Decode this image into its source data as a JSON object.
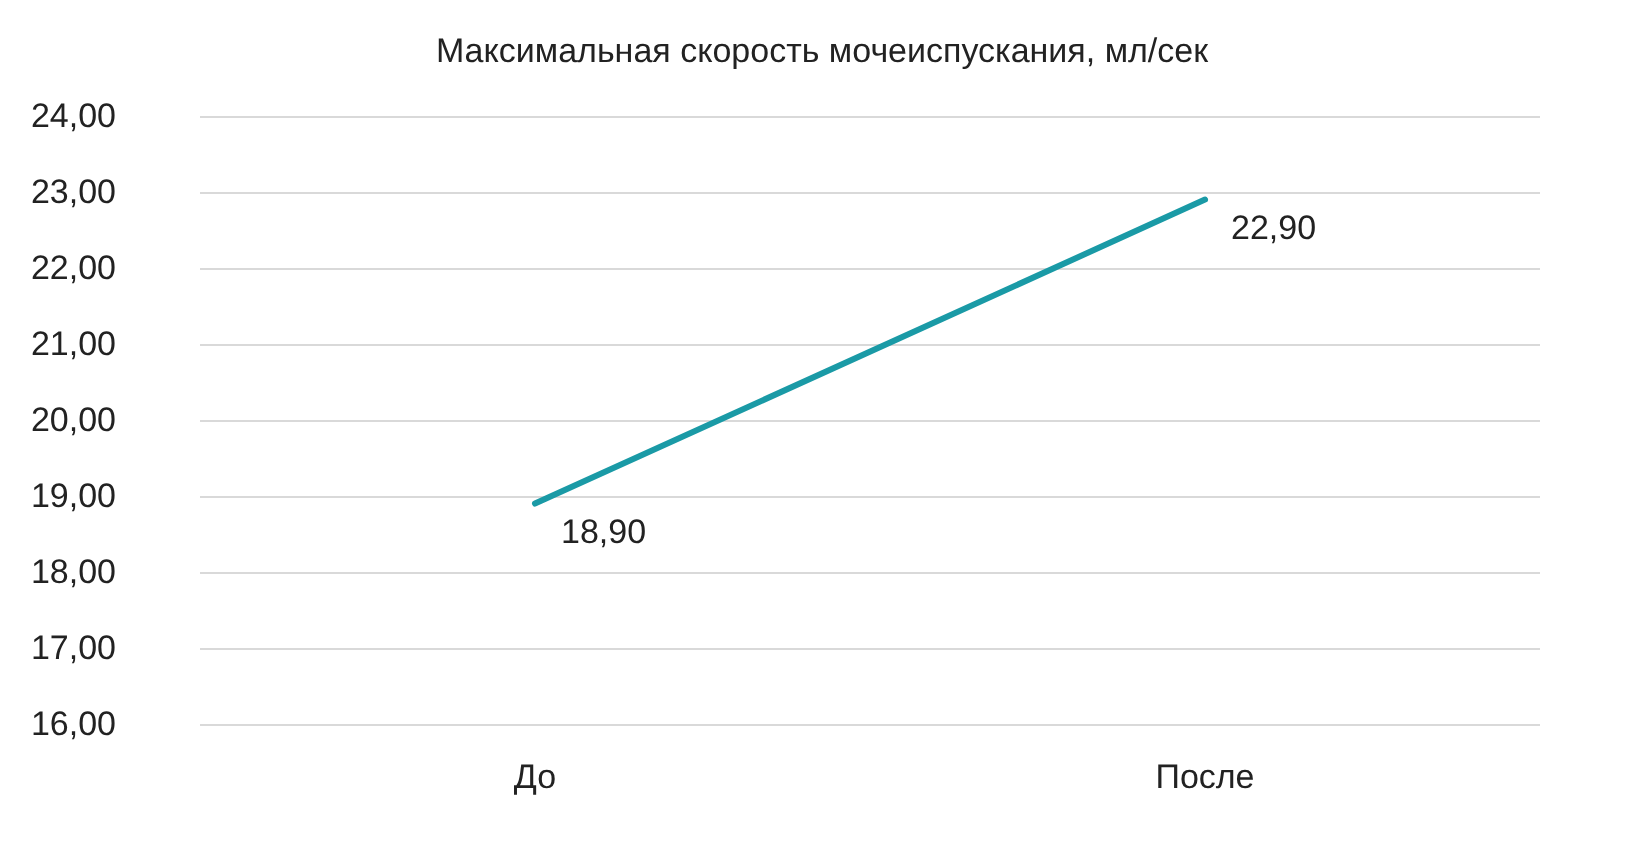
{
  "chart_data": {
    "type": "line",
    "title": "Максимальная скорость мочеиспускания, мл/сек",
    "categories": [
      "До",
      "После"
    ],
    "series": [
      {
        "color": "#1a9aa6",
        "values": [
          18.9,
          22.9
        ],
        "value_labels": [
          "18,90",
          "22,90"
        ]
      }
    ],
    "ylim": [
      16,
      24
    ],
    "yticks": [
      {
        "value": 16,
        "label": "16,00"
      },
      {
        "value": 17,
        "label": "17,00"
      },
      {
        "value": 18,
        "label": "18,00"
      },
      {
        "value": 19,
        "label": "19,00"
      },
      {
        "value": 20,
        "label": "20,00"
      },
      {
        "value": 21,
        "label": "21,00"
      },
      {
        "value": 22,
        "label": "22,00"
      },
      {
        "value": 23,
        "label": "23,00"
      },
      {
        "value": 24,
        "label": "24,00"
      }
    ],
    "grid": "y",
    "marker": "none",
    "line_style": "solid"
  }
}
